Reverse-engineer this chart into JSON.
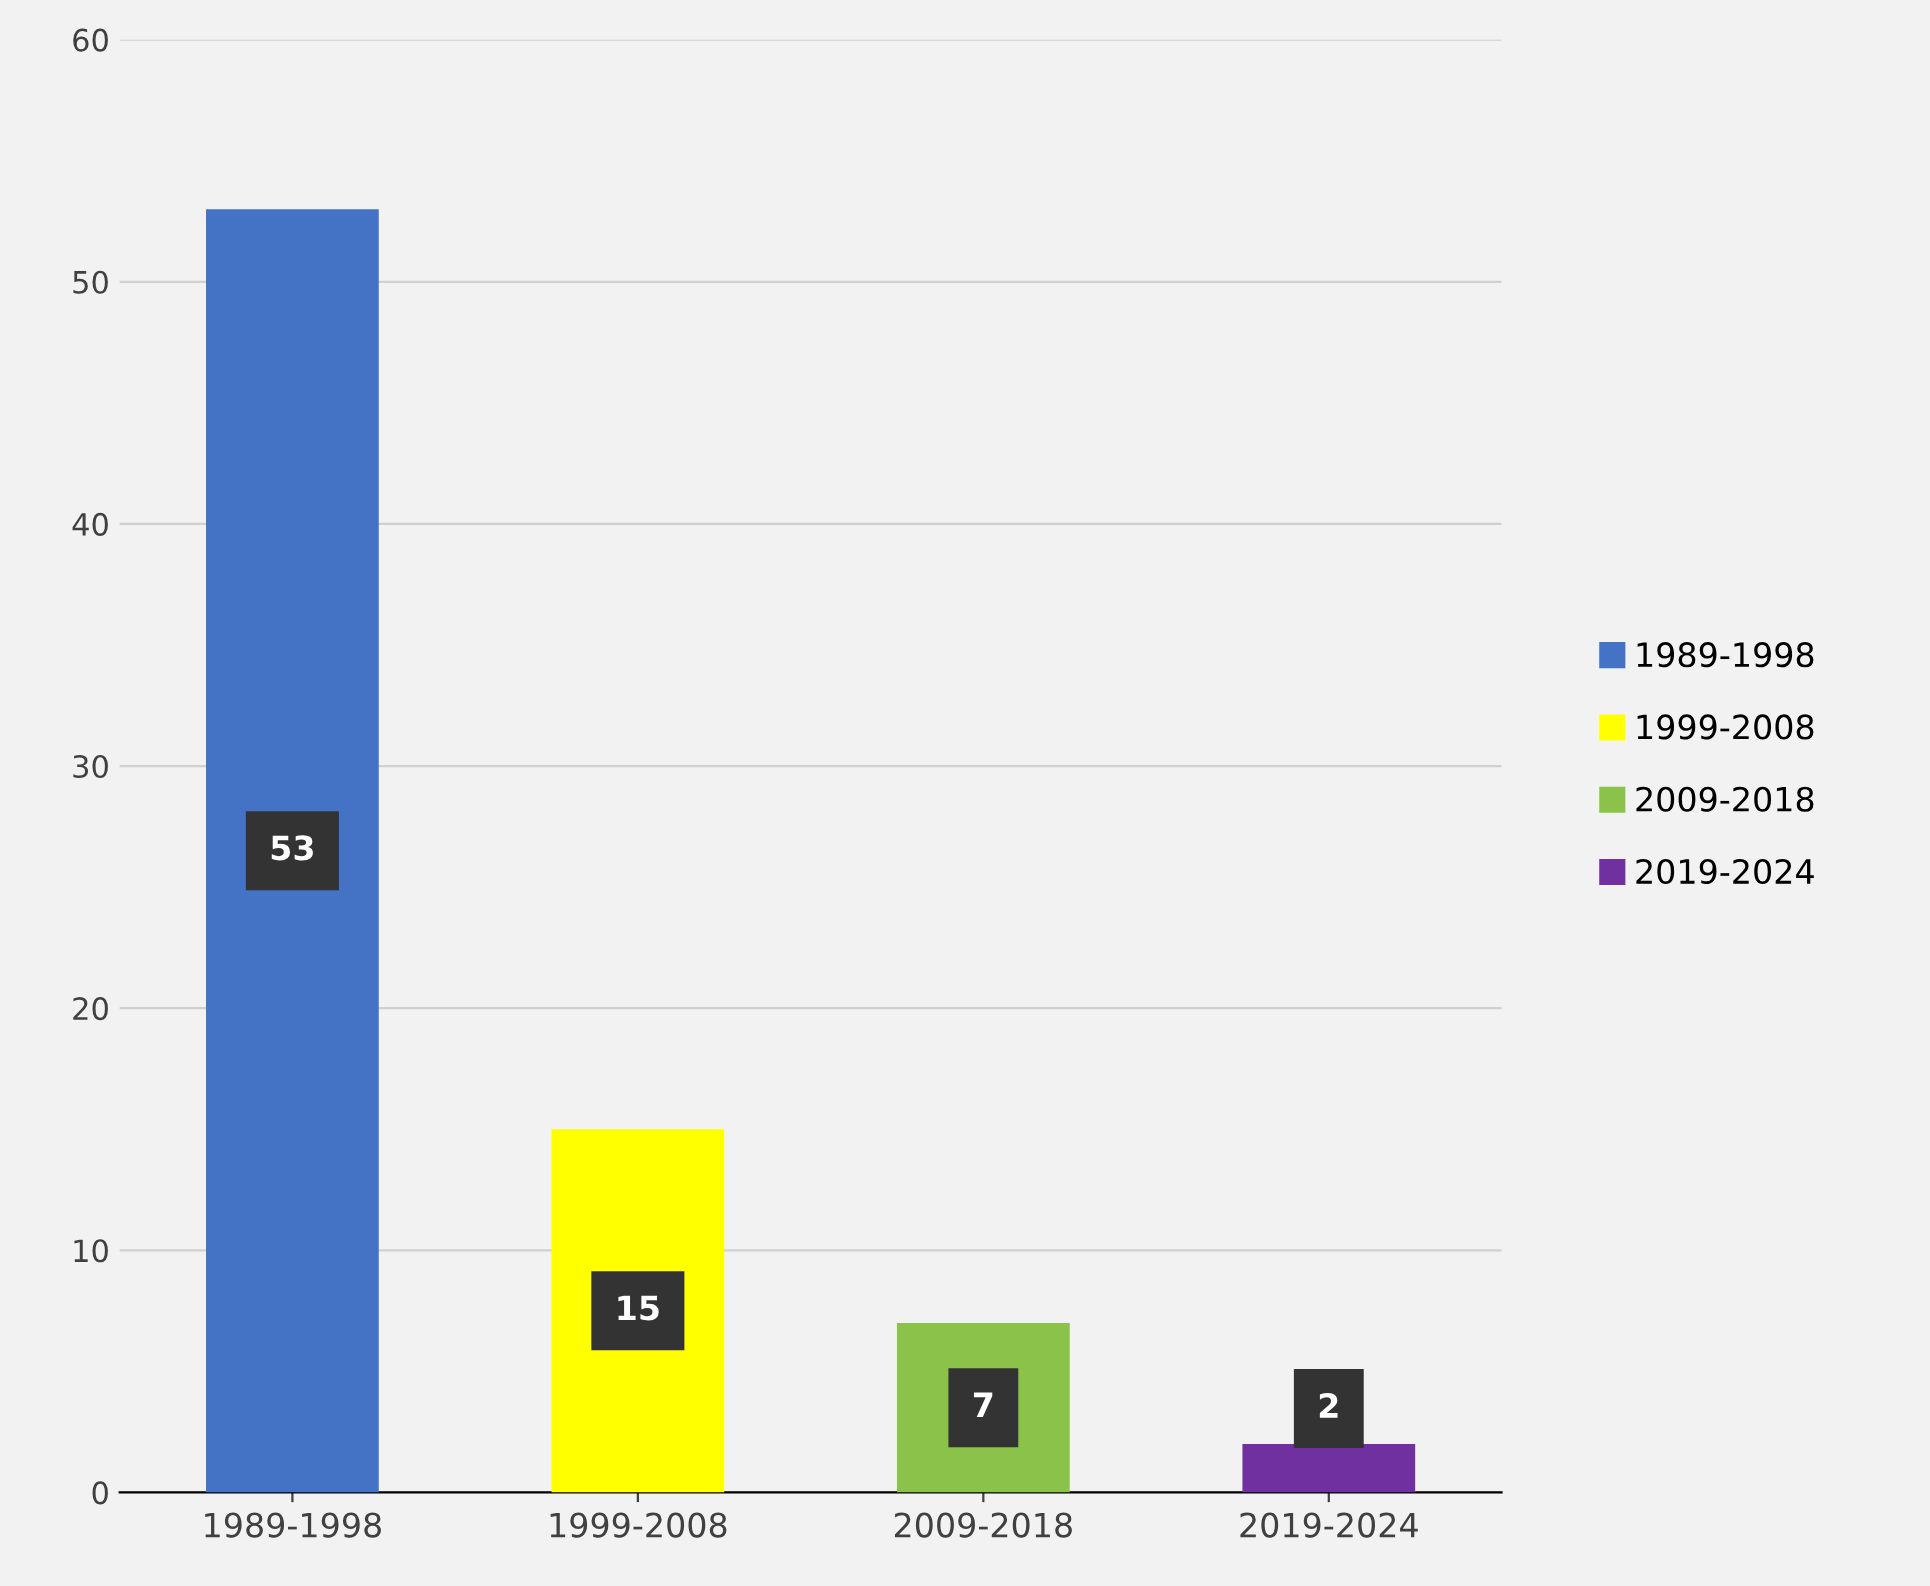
{
  "chart_data": {
    "type": "bar",
    "categories": [
      "1989-1998",
      "1999-2008",
      "2009-2018",
      "2019-2024"
    ],
    "series": [
      {
        "name": "1989-1998",
        "color": "#4472c4",
        "values": [
          53,
          null,
          null,
          null
        ]
      },
      {
        "name": "1999-2008",
        "color": "#ffff00",
        "values": [
          null,
          15,
          null,
          null
        ]
      },
      {
        "name": "2009-2018",
        "color": "#8bc34a",
        "values": [
          null,
          null,
          7,
          null
        ]
      },
      {
        "name": "2019-2024",
        "color": "#7030a0",
        "values": [
          null,
          null,
          null,
          2
        ]
      }
    ],
    "ylim": [
      0,
      60
    ],
    "yticks": [
      0,
      10,
      20,
      30,
      40,
      50,
      60
    ],
    "grid": "y",
    "legend": "right",
    "data_labels": true
  }
}
